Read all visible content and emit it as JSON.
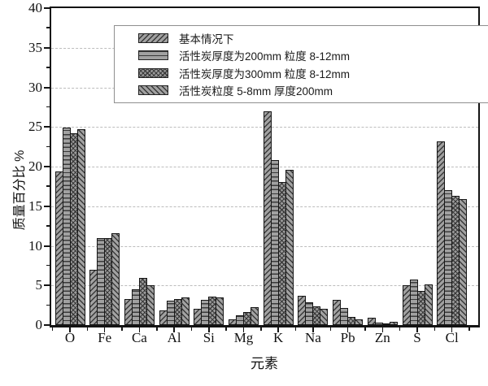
{
  "chart_data": {
    "type": "bar",
    "title": "",
    "xlabel": "元素",
    "ylabel": "质量百分比  %",
    "ylim": [
      0,
      40
    ],
    "ytick_step": 5,
    "yticks": [
      0,
      5,
      10,
      15,
      20,
      25,
      30,
      35,
      40
    ],
    "grid": "horizontal dashed at major ticks",
    "legend_position": "top-inside",
    "categories": [
      "O",
      "Fe",
      "Ca",
      "Al",
      "Si",
      "Mg",
      "K",
      "Na",
      "Pb",
      "Zn",
      "S",
      "Cl"
    ],
    "series": [
      {
        "name": "基本情况下",
        "hatch": "diagonal-forward",
        "values": [
          19.4,
          7.0,
          3.3,
          1.8,
          2.1,
          0.7,
          27.0,
          3.7,
          3.2,
          0.9,
          5.0,
          23.2
        ]
      },
      {
        "name": "活性炭厚度为200mm 粒度 8-12mm",
        "hatch": "horizontal-lines",
        "values": [
          24.9,
          11.0,
          4.5,
          3.1,
          3.2,
          1.2,
          20.8,
          2.9,
          2.2,
          0.3,
          5.7,
          17.0
        ]
      },
      {
        "name": "活性炭厚度为300mm 粒度 8-12mm",
        "hatch": "crosshatch",
        "values": [
          24.2,
          11.0,
          5.9,
          3.3,
          3.6,
          1.6,
          18.0,
          2.4,
          1.0,
          0.15,
          4.3,
          16.3
        ]
      },
      {
        "name": "活性炭粒度 5-8mm 厚度200mm",
        "hatch": "diagonal-back",
        "values": [
          24.7,
          11.6,
          5.0,
          3.5,
          3.5,
          2.3,
          19.6,
          2.0,
          0.7,
          0.4,
          5.1,
          15.9
        ]
      }
    ]
  },
  "colors": {
    "background": "#ffffff",
    "bar_fill": "#a1a1a1",
    "hatch_line": "#3a3a3a",
    "bar_border": "#161616",
    "axis": "#141414",
    "grid": "#bdbdbd",
    "legend_border": "#8f8f8f",
    "text": "#111111"
  }
}
